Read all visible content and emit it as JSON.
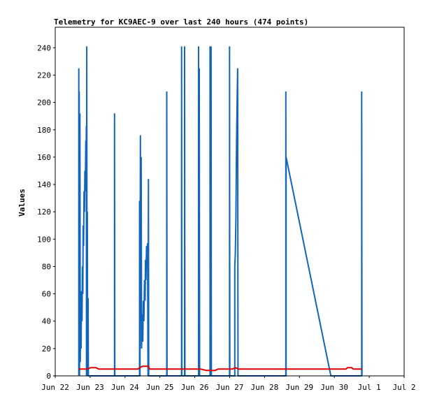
{
  "chart_data": {
    "type": "line",
    "title": "Telemetry for KC9AEC-9 over last 240 hours (474 points)",
    "xlabel": "",
    "ylabel": "Values",
    "x_unit": "hours since Jun 22 00:00",
    "xlim": [
      0,
      240
    ],
    "ylim": [
      0,
      255
    ],
    "grid": false,
    "x_ticks": [
      {
        "x": 0,
        "label": "Jun 22"
      },
      {
        "x": 24,
        "label": "Jun 23"
      },
      {
        "x": 48,
        "label": "Jun 24"
      },
      {
        "x": 72,
        "label": "Jun 25"
      },
      {
        "x": 96,
        "label": "Jun 26"
      },
      {
        "x": 120,
        "label": "Jun 27"
      },
      {
        "x": 144,
        "label": "Jun 28"
      },
      {
        "x": 168,
        "label": "Jun 29"
      },
      {
        "x": 192,
        "label": "Jun 30"
      },
      {
        "x": 216,
        "label": "Jul 1"
      },
      {
        "x": 240,
        "label": "Jul 2"
      }
    ],
    "y_ticks": [
      0,
      20,
      40,
      60,
      80,
      100,
      120,
      140,
      160,
      180,
      200,
      220,
      240
    ],
    "series": [
      {
        "color": "#1166bb",
        "points": [
          [
            16.2,
            0
          ],
          [
            16.2,
            225
          ],
          [
            16.4,
            0
          ],
          [
            16.5,
            208
          ],
          [
            16.7,
            0
          ],
          [
            17.0,
            192
          ],
          [
            17.2,
            10
          ],
          [
            17.5,
            45
          ],
          [
            17.8,
            20
          ],
          [
            18.1,
            62
          ],
          [
            18.4,
            40
          ],
          [
            18.7,
            80
          ],
          [
            19.0,
            60
          ],
          [
            19.2,
            110
          ],
          [
            19.5,
            95
          ],
          [
            19.8,
            135
          ],
          [
            20.1,
            120
          ],
          [
            20.4,
            150
          ],
          [
            20.7,
            135
          ],
          [
            21.0,
            172
          ],
          [
            21.2,
            160
          ],
          [
            21.4,
            183
          ],
          [
            21.5,
            0
          ],
          [
            21.7,
            241
          ],
          [
            21.9,
            0
          ],
          [
            22.1,
            120
          ],
          [
            22.3,
            0
          ],
          [
            22.6,
            57
          ],
          [
            22.8,
            0
          ],
          [
            40.8,
            0
          ],
          [
            40.8,
            192
          ],
          [
            41.0,
            0
          ],
          [
            58.0,
            0
          ],
          [
            58.0,
            128
          ],
          [
            58.3,
            0
          ],
          [
            58.6,
            176
          ],
          [
            58.8,
            40
          ],
          [
            59.1,
            160
          ],
          [
            59.4,
            20
          ],
          [
            59.8,
            45
          ],
          [
            60.2,
            25
          ],
          [
            60.6,
            55
          ],
          [
            61.0,
            40
          ],
          [
            61.4,
            70
          ],
          [
            61.8,
            55
          ],
          [
            62.1,
            85
          ],
          [
            62.4,
            70
          ],
          [
            62.8,
            95
          ],
          [
            63.1,
            80
          ],
          [
            63.5,
            97
          ],
          [
            63.8,
            0
          ],
          [
            64.1,
            144
          ],
          [
            64.3,
            0
          ],
          [
            76.7,
            0
          ],
          [
            76.7,
            208
          ],
          [
            76.9,
            0
          ],
          [
            86.9,
            0
          ],
          [
            86.9,
            241
          ],
          [
            87.1,
            0
          ],
          [
            89.0,
            0
          ],
          [
            89.0,
            241
          ],
          [
            89.2,
            0
          ],
          [
            98.6,
            0
          ],
          [
            98.6,
            241
          ],
          [
            98.8,
            0
          ],
          [
            99.1,
            225
          ],
          [
            99.3,
            0
          ],
          [
            106.5,
            0
          ],
          [
            106.5,
            241
          ],
          [
            106.7,
            0
          ],
          [
            107.2,
            241
          ],
          [
            107.4,
            0
          ],
          [
            119.9,
            0
          ],
          [
            119.9,
            241
          ],
          [
            120.1,
            0
          ],
          [
            123.5,
            0
          ],
          [
            123.5,
            80
          ],
          [
            123.9,
            90
          ],
          [
            124.3,
            115
          ],
          [
            124.7,
            170
          ],
          [
            125.1,
            200
          ],
          [
            125.5,
            225
          ],
          [
            125.7,
            0
          ],
          [
            158.6,
            0
          ],
          [
            158.6,
            208
          ],
          [
            158.8,
            0
          ],
          [
            158.8,
            160
          ],
          [
            189.6,
            0
          ],
          [
            210.8,
            0
          ],
          [
            210.8,
            208
          ],
          [
            211.0,
            0
          ]
        ]
      },
      {
        "color": "#dd0000",
        "points": [
          [
            16.2,
            5
          ],
          [
            22.0,
            5
          ],
          [
            24.5,
            6
          ],
          [
            28.0,
            6
          ],
          [
            30.0,
            5
          ],
          [
            57.0,
            5
          ],
          [
            58.0,
            6
          ],
          [
            60.0,
            7
          ],
          [
            64.0,
            7
          ],
          [
            65.0,
            5
          ],
          [
            100.0,
            5
          ],
          [
            104.0,
            4
          ],
          [
            110.0,
            4
          ],
          [
            112.0,
            5
          ],
          [
            122.0,
            5
          ],
          [
            124.0,
            6
          ],
          [
            126.0,
            5
          ],
          [
            195.0,
            5
          ],
          [
            200.0,
            5
          ],
          [
            201.0,
            6
          ],
          [
            204.0,
            6
          ],
          [
            205.0,
            5
          ],
          [
            211.0,
            5
          ]
        ]
      },
      {
        "color": "#000000",
        "points": [
          [
            16.2,
            0
          ],
          [
            211.0,
            0
          ]
        ]
      }
    ]
  }
}
